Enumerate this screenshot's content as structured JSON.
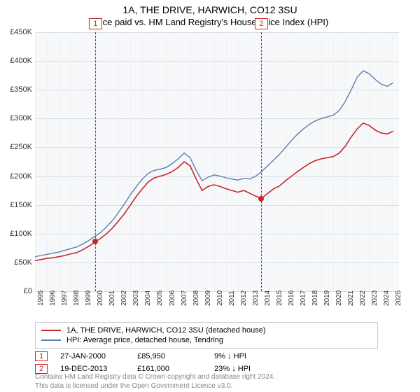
{
  "title": "1A, THE DRIVE, HARWICH, CO12 3SU",
  "subtitle": "Price paid vs. HM Land Registry's House Price Index (HPI)",
  "chart": {
    "type": "line",
    "background_color": "#f7f8fa",
    "grid_color_h": "#d9dde2",
    "grid_color_v": "#eef0f3",
    "x": {
      "min": 1995,
      "max": 2025.5,
      "ticks": [
        1995,
        1996,
        1997,
        1998,
        1999,
        2000,
        2001,
        2002,
        2003,
        2004,
        2005,
        2006,
        2007,
        2008,
        2009,
        2010,
        2011,
        2012,
        2013,
        2014,
        2015,
        2016,
        2017,
        2018,
        2019,
        2020,
        2021,
        2022,
        2023,
        2024,
        2025
      ]
    },
    "y": {
      "min": 0,
      "max": 450000,
      "step": 50000,
      "prefix": "£",
      "suffix": "K",
      "divide": 1000
    },
    "series": [
      {
        "name": "1A, THE DRIVE, HARWICH, CO12 3SU (detached house)",
        "color": "#c62828",
        "width": 1.6,
        "points": [
          [
            1995.0,
            53000
          ],
          [
            1995.5,
            55000
          ],
          [
            1996.0,
            57000
          ],
          [
            1996.5,
            58000
          ],
          [
            1997.0,
            60000
          ],
          [
            1997.5,
            62000
          ],
          [
            1998.0,
            65000
          ],
          [
            1998.5,
            67000
          ],
          [
            1999.0,
            72000
          ],
          [
            1999.5,
            78000
          ],
          [
            2000.0,
            85000
          ],
          [
            2000.5,
            92000
          ],
          [
            2001.0,
            100000
          ],
          [
            2001.5,
            110000
          ],
          [
            2002.0,
            122000
          ],
          [
            2002.5,
            135000
          ],
          [
            2003.0,
            150000
          ],
          [
            2003.5,
            165000
          ],
          [
            2004.0,
            178000
          ],
          [
            2004.5,
            190000
          ],
          [
            2005.0,
            197000
          ],
          [
            2005.5,
            200000
          ],
          [
            2006.0,
            203000
          ],
          [
            2006.5,
            208000
          ],
          [
            2007.0,
            215000
          ],
          [
            2007.5,
            225000
          ],
          [
            2008.0,
            218000
          ],
          [
            2008.5,
            195000
          ],
          [
            2009.0,
            175000
          ],
          [
            2009.5,
            182000
          ],
          [
            2010.0,
            185000
          ],
          [
            2010.5,
            182000
          ],
          [
            2011.0,
            178000
          ],
          [
            2011.5,
            175000
          ],
          [
            2012.0,
            172000
          ],
          [
            2012.5,
            175000
          ],
          [
            2013.0,
            170000
          ],
          [
            2013.5,
            165000
          ],
          [
            2013.97,
            161000
          ],
          [
            2014.5,
            170000
          ],
          [
            2015.0,
            178000
          ],
          [
            2015.5,
            183000
          ],
          [
            2016.0,
            192000
          ],
          [
            2016.5,
            200000
          ],
          [
            2017.0,
            208000
          ],
          [
            2017.5,
            215000
          ],
          [
            2018.0,
            222000
          ],
          [
            2018.5,
            227000
          ],
          [
            2019.0,
            230000
          ],
          [
            2019.5,
            232000
          ],
          [
            2020.0,
            234000
          ],
          [
            2020.5,
            240000
          ],
          [
            2021.0,
            252000
          ],
          [
            2021.5,
            268000
          ],
          [
            2022.0,
            282000
          ],
          [
            2022.5,
            292000
          ],
          [
            2023.0,
            288000
          ],
          [
            2023.5,
            280000
          ],
          [
            2024.0,
            275000
          ],
          [
            2024.5,
            273000
          ],
          [
            2025.0,
            278000
          ]
        ]
      },
      {
        "name": "HPI: Average price, detached house, Tendring",
        "color": "#5b7fb0",
        "width": 1.4,
        "points": [
          [
            1995.0,
            60000
          ],
          [
            1995.5,
            62000
          ],
          [
            1996.0,
            64000
          ],
          [
            1996.5,
            66000
          ],
          [
            1997.0,
            68000
          ],
          [
            1997.5,
            71000
          ],
          [
            1998.0,
            74000
          ],
          [
            1998.5,
            77000
          ],
          [
            1999.0,
            82000
          ],
          [
            1999.5,
            88000
          ],
          [
            2000.0,
            95000
          ],
          [
            2000.5,
            102000
          ],
          [
            2001.0,
            112000
          ],
          [
            2001.5,
            123000
          ],
          [
            2002.0,
            137000
          ],
          [
            2002.5,
            152000
          ],
          [
            2003.0,
            168000
          ],
          [
            2003.5,
            182000
          ],
          [
            2004.0,
            195000
          ],
          [
            2004.5,
            205000
          ],
          [
            2005.0,
            210000
          ],
          [
            2005.5,
            212000
          ],
          [
            2006.0,
            215000
          ],
          [
            2006.5,
            222000
          ],
          [
            2007.0,
            230000
          ],
          [
            2007.5,
            240000
          ],
          [
            2008.0,
            232000
          ],
          [
            2008.5,
            210000
          ],
          [
            2009.0,
            192000
          ],
          [
            2009.5,
            198000
          ],
          [
            2010.0,
            202000
          ],
          [
            2010.5,
            200000
          ],
          [
            2011.0,
            197000
          ],
          [
            2011.5,
            195000
          ],
          [
            2012.0,
            193000
          ],
          [
            2012.5,
            196000
          ],
          [
            2013.0,
            195000
          ],
          [
            2013.5,
            200000
          ],
          [
            2014.0,
            208000
          ],
          [
            2014.5,
            218000
          ],
          [
            2015.0,
            228000
          ],
          [
            2015.5,
            238000
          ],
          [
            2016.0,
            250000
          ],
          [
            2016.5,
            262000
          ],
          [
            2017.0,
            273000
          ],
          [
            2017.5,
            282000
          ],
          [
            2018.0,
            290000
          ],
          [
            2018.5,
            296000
          ],
          [
            2019.0,
            300000
          ],
          [
            2019.5,
            303000
          ],
          [
            2020.0,
            306000
          ],
          [
            2020.5,
            314000
          ],
          [
            2021.0,
            330000
          ],
          [
            2021.5,
            350000
          ],
          [
            2022.0,
            372000
          ],
          [
            2022.5,
            383000
          ],
          [
            2023.0,
            378000
          ],
          [
            2023.5,
            368000
          ],
          [
            2024.0,
            360000
          ],
          [
            2024.5,
            356000
          ],
          [
            2025.0,
            362000
          ]
        ]
      }
    ],
    "markers": [
      {
        "n": 1,
        "x": 2000.07,
        "y": 85950
      },
      {
        "n": 2,
        "x": 2013.97,
        "y": 161000
      }
    ]
  },
  "legend": [
    {
      "color": "#c62828",
      "label": "1A, THE DRIVE, HARWICH, CO12 3SU (detached house)"
    },
    {
      "color": "#5b7fb0",
      "label": "HPI: Average price, detached house, Tendring"
    }
  ],
  "transactions": [
    {
      "n": "1",
      "date": "27-JAN-2000",
      "price": "£85,950",
      "delta": "9% ↓ HPI"
    },
    {
      "n": "2",
      "date": "19-DEC-2013",
      "price": "£161,000",
      "delta": "23% ↓ HPI"
    }
  ],
  "footer_l1": "Contains HM Land Registry data © Crown copyright and database right 2024.",
  "footer_l2": "This data is licensed under the Open Government Licence v3.0."
}
